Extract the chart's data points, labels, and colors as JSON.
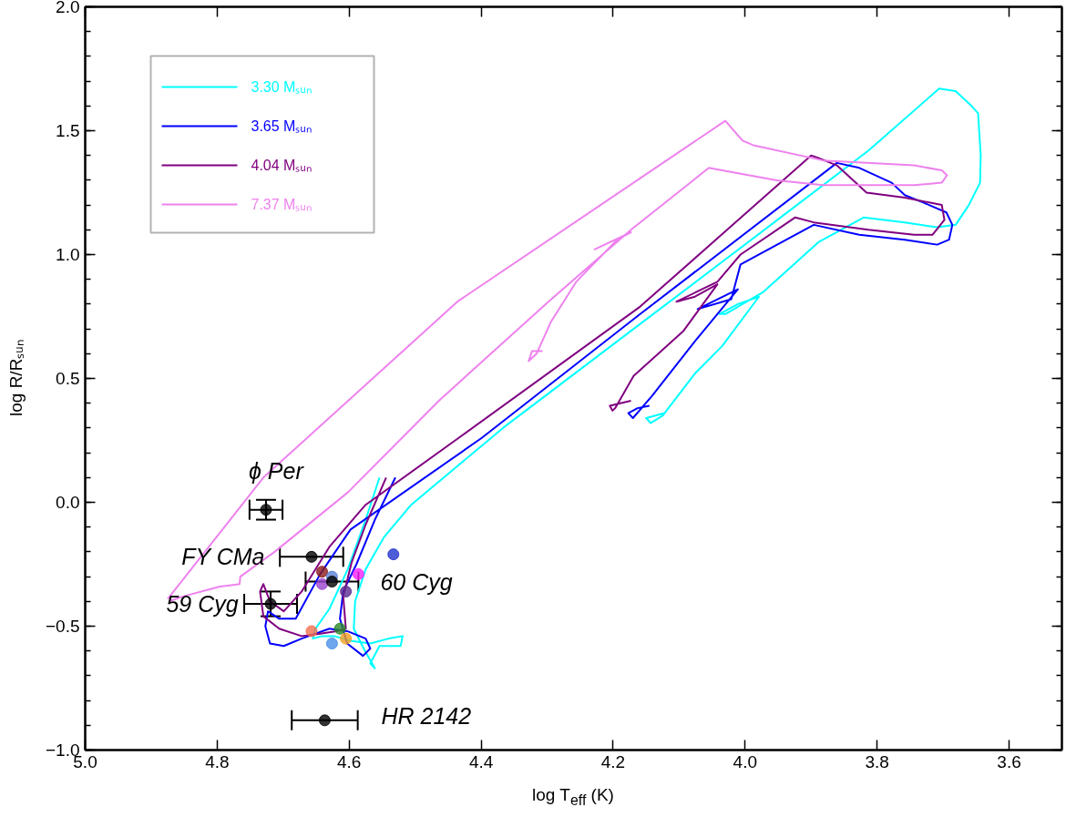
{
  "chart_data": {
    "type": "line",
    "xlabel": "log T$_{eff}$ (K)",
    "ylabel": "log R/Rₛᵤₙ",
    "xlim": [
      5.0,
      3.52
    ],
    "ylim": [
      -1.0,
      2.0
    ],
    "xticks": [
      {
        "value": 5.0,
        "label": "5.0"
      },
      {
        "value": 4.8,
        "label": "4.8"
      },
      {
        "value": 4.6,
        "label": "4.6"
      },
      {
        "value": 4.4,
        "label": "4.4"
      },
      {
        "value": 4.2,
        "label": "4.2"
      },
      {
        "value": 4.0,
        "label": "4.0"
      },
      {
        "value": 3.8,
        "label": "3.8"
      },
      {
        "value": 3.6,
        "label": "3.6"
      }
    ],
    "yticks": [
      {
        "value": -1.0,
        "label": "−1.0"
      },
      {
        "value": -0.5,
        "label": "−0.5"
      },
      {
        "value": 0.0,
        "label": "0.0"
      },
      {
        "value": 0.5,
        "label": "0.5"
      },
      {
        "value": 1.0,
        "label": "1.0"
      },
      {
        "value": 1.5,
        "label": "1.5"
      },
      {
        "value": 2.0,
        "label": "2.0"
      }
    ],
    "legend": "top left",
    "line_style": "solid",
    "series": [
      {
        "name": "3.30 Mₛᵤₙ",
        "color": "#00ffff",
        "x": [
          4.554,
          4.575,
          4.602,
          4.63,
          4.651,
          4.655,
          4.641,
          4.623,
          4.596,
          4.568,
          4.54,
          4.519,
          4.522,
          4.554,
          4.568,
          4.561,
          4.578,
          4.593,
          4.591,
          4.575,
          4.547,
          4.506,
          4.367,
          4.159,
          3.951,
          3.813,
          3.706,
          3.681,
          3.657,
          3.647,
          3.643,
          3.644,
          3.661,
          3.681,
          3.709,
          3.758,
          3.82,
          3.889,
          3.972,
          4.03,
          4.039,
          4.011,
          3.979,
          4.035,
          4.076,
          4.125,
          4.143,
          4.15,
          4.122
        ],
        "values": [
          0.1,
          -0.07,
          -0.27,
          -0.43,
          -0.51,
          -0.55,
          -0.54,
          -0.54,
          -0.56,
          -0.57,
          -0.55,
          -0.54,
          -0.58,
          -0.58,
          -0.65,
          -0.67,
          -0.59,
          -0.51,
          -0.4,
          -0.27,
          -0.14,
          -0.01,
          0.3,
          0.72,
          1.14,
          1.42,
          1.67,
          1.66,
          1.6,
          1.57,
          1.4,
          1.29,
          1.2,
          1.12,
          1.11,
          1.13,
          1.15,
          1.05,
          0.85,
          0.76,
          0.76,
          0.8,
          0.83,
          0.63,
          0.52,
          0.35,
          0.32,
          0.34,
          0.36
        ]
      },
      {
        "name": "3.65 Mₛᵤₙ",
        "color": "#0000ff",
        "x": [
          4.53,
          4.561,
          4.589,
          4.609,
          4.614,
          4.603,
          4.579,
          4.568,
          4.575,
          4.603,
          4.63,
          4.672,
          4.699,
          4.72,
          4.727,
          4.723,
          4.706,
          4.681,
          4.644,
          4.598,
          4.399,
          4.159,
          3.861,
          3.827,
          3.778,
          3.758,
          3.73,
          3.695,
          3.686,
          3.691,
          3.709,
          3.758,
          3.827,
          3.896,
          4.007,
          4.021,
          4.072,
          4.011,
          4.076,
          4.141,
          4.17,
          4.177,
          4.163,
          4.145
        ],
        "values": [
          0.1,
          -0.07,
          -0.25,
          -0.36,
          -0.47,
          -0.57,
          -0.62,
          -0.59,
          -0.55,
          -0.52,
          -0.51,
          -0.55,
          -0.58,
          -0.57,
          -0.5,
          -0.44,
          -0.47,
          -0.47,
          -0.29,
          -0.11,
          0.26,
          0.76,
          1.37,
          1.35,
          1.29,
          1.24,
          1.21,
          1.17,
          1.12,
          1.06,
          1.04,
          1.06,
          1.08,
          1.12,
          0.96,
          0.82,
          0.78,
          0.86,
          0.65,
          0.43,
          0.34,
          0.36,
          0.38,
          0.39
        ]
      },
      {
        "name": "4.04 Mₛᵤₙ",
        "color": "#800080",
        "x": [
          4.544,
          4.575,
          4.596,
          4.609,
          4.605,
          4.619,
          4.644,
          4.672,
          4.706,
          4.73,
          4.735,
          4.73,
          4.72,
          4.699,
          4.672,
          4.63,
          4.575,
          4.434,
          4.159,
          3.9,
          3.889,
          3.861,
          3.816,
          3.758,
          3.702,
          3.698,
          3.716,
          3.744,
          3.813,
          3.896,
          3.924,
          4.007,
          4.042,
          4.104,
          4.076,
          4.042,
          4.094,
          4.169,
          4.197,
          4.201,
          4.205,
          4.173
        ],
        "values": [
          0.1,
          -0.09,
          -0.24,
          -0.38,
          -0.51,
          -0.52,
          -0.53,
          -0.54,
          -0.51,
          -0.46,
          -0.36,
          -0.33,
          -0.4,
          -0.44,
          -0.36,
          -0.18,
          -0.01,
          0.26,
          0.79,
          1.4,
          1.39,
          1.36,
          1.25,
          1.23,
          1.2,
          1.14,
          1.08,
          1.08,
          1.1,
          1.13,
          1.15,
          1.0,
          0.89,
          0.81,
          0.83,
          0.88,
          0.69,
          0.51,
          0.38,
          0.37,
          0.39,
          0.41
        ]
      },
      {
        "name": "7.37 Mₛᵤₙ",
        "color": "#ee82ee",
        "x": [
          4.875,
          4.73,
          4.436,
          4.03,
          4.004,
          3.986,
          3.882,
          3.744,
          3.702,
          3.694,
          3.702,
          3.744,
          3.882,
          3.952,
          4.035,
          4.055,
          4.173,
          4.298,
          4.464,
          4.602,
          4.713,
          4.765,
          4.766,
          4.796,
          4.852,
          4.873,
          null,
          4.229,
          4.173,
          4.194,
          4.256,
          4.294,
          4.316,
          4.328,
          4.323,
          4.307
        ],
        "values": [
          -0.39,
          0.1,
          0.81,
          1.54,
          1.46,
          1.44,
          1.38,
          1.36,
          1.34,
          1.32,
          1.29,
          1.28,
          1.28,
          1.3,
          1.34,
          1.35,
          1.1,
          0.81,
          0.41,
          0.04,
          -0.2,
          -0.3,
          -0.33,
          -0.34,
          -0.38,
          -0.4,
          null,
          1.02,
          1.09,
          1.06,
          0.89,
          0.73,
          0.6,
          0.57,
          0.61,
          0.61
        ]
      },
      {
        "type": "scatter",
        "marker": "circle",
        "x": [
          4.533,
          4.641,
          4.626,
          4.586,
          4.641,
          4.605,
          4.657,
          4.614,
          4.605,
          4.626
        ],
        "values": [
          -0.21,
          -0.28,
          -0.3,
          -0.29,
          -0.33,
          -0.36,
          -0.52,
          -0.51,
          -0.55,
          -0.57
        ],
        "colors": [
          "#2233cc",
          "#8b1a1a",
          "#5b7fd6",
          "#ff22ff",
          "#9a44d0",
          "#5a2a90",
          "#f07050",
          "#2a8a2a",
          "#f0a020",
          "#4a90e8"
        ]
      },
      {
        "type": "scatter",
        "marker": "circle",
        "color": "#000000",
        "x": [
          4.726,
          4.657,
          4.719,
          4.626,
          4.637
        ],
        "values": [
          -0.03,
          -0.22,
          -0.41,
          -0.32,
          -0.88
        ],
        "errors": [
          0.04,
          null,
          0.05,
          null,
          null
        ],
        "xerrors": [
          0.025,
          0.048,
          0.04,
          0.04,
          0.05
        ]
      }
    ],
    "annotations": [
      {
        "text": "ϕ Per",
        "x": 4.726,
        "y": -0.03
      },
      {
        "text": "FY CMa",
        "x": 4.657,
        "y": -0.22
      },
      {
        "text": "59 Cyg",
        "x": 4.719,
        "y": -0.41
      },
      {
        "text": "60 Cyg",
        "x": 4.626,
        "y": -0.32
      },
      {
        "text": "HR 2142",
        "x": 4.637,
        "y": -0.88
      }
    ]
  }
}
